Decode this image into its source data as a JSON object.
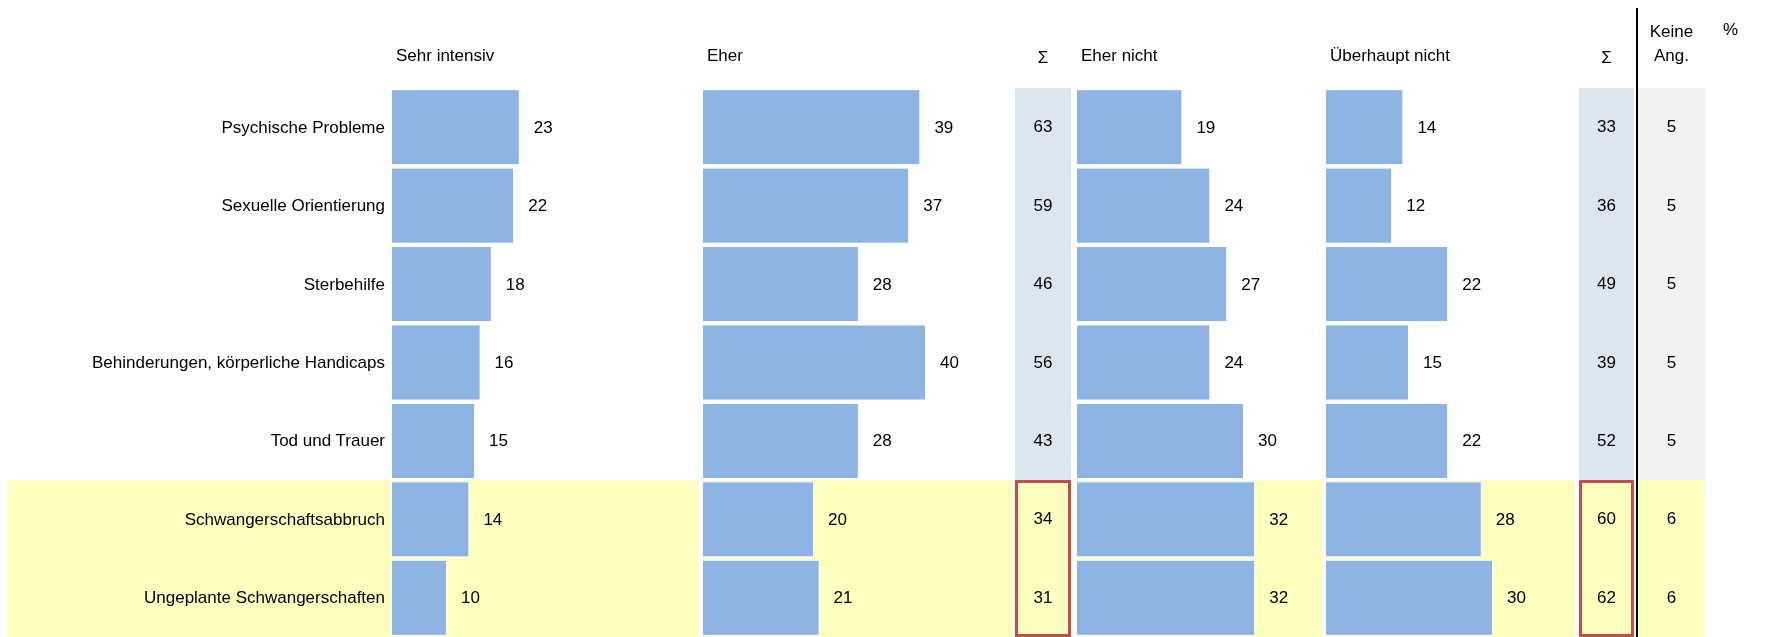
{
  "chart_data": [
    {
      "type": "bar",
      "orientation": "horizontal",
      "title": "Sehr intensiv",
      "categories": [
        "Psychische Probleme",
        "Sexuelle Orientierung",
        "Sterbehilfe",
        "Behinderungen, körperliche Handicaps",
        "Tod und Trauer",
        "Schwangerschaftsabbruch",
        "Ungeplante Schwangerschaften"
      ],
      "values": [
        23,
        22,
        18,
        16,
        15,
        14,
        10
      ],
      "color": "#8eb4e3",
      "data_labels": true,
      "tick_labels": "y",
      "bands": [
        {
          "axis": "y",
          "from": "Schwangerschaftsabbruch",
          "to": "Ungeplante Schwangerschaften",
          "color": "#ffffc0"
        }
      ]
    },
    {
      "type": "bar",
      "orientation": "horizontal",
      "title": "Eher",
      "categories": [
        "Psychische Probleme",
        "Sexuelle Orientierung",
        "Sterbehilfe",
        "Behinderungen, körperliche Handicaps",
        "Tod und Trauer",
        "Schwangerschaftsabbruch",
        "Ungeplante Schwangerschaften"
      ],
      "values": [
        39,
        37,
        28,
        40,
        28,
        20,
        21
      ],
      "color": "#8eb4e3",
      "data_labels": true,
      "tick_labels": false,
      "bands": [
        {
          "axis": "y",
          "from": "Schwangerschaftsabbruch",
          "to": "Ungeplante Schwangerschaften",
          "color": "#ffffc0"
        }
      ]
    },
    {
      "type": "other",
      "title": "Σ",
      "annotations": [
        "63",
        "59",
        "46",
        "56",
        "43",
        "34",
        "31"
      ],
      "color": "#dce6f1"
    },
    {
      "type": "bar",
      "orientation": "horizontal",
      "title": "Eher nicht",
      "categories": [
        "Psychische Probleme",
        "Sexuelle Orientierung",
        "Sterbehilfe",
        "Behinderungen, körperliche Handicaps",
        "Tod und Trauer",
        "Schwangerschaftsabbruch",
        "Ungeplante Schwangerschaften"
      ],
      "values": [
        19,
        24,
        27,
        24,
        30,
        32,
        32
      ],
      "color": "#8eb4e3",
      "data_labels": true,
      "tick_labels": false,
      "bands": [
        {
          "axis": "y",
          "from": "Schwangerschaftsabbruch",
          "to": "Ungeplante Schwangerschaften",
          "color": "#ffffc0"
        }
      ]
    },
    {
      "type": "bar",
      "orientation": "horizontal",
      "title": "Überhaupt nicht",
      "categories": [
        "Psychische Probleme",
        "Sexuelle Orientierung",
        "Sterbehilfe",
        "Behinderungen, körperliche Handicaps",
        "Tod und Trauer",
        "Schwangerschaftsabbruch",
        "Ungeplante Schwangerschaften"
      ],
      "values": [
        14,
        12,
        22,
        15,
        22,
        28,
        30
      ],
      "color": "#8eb4e3",
      "data_labels": true,
      "tick_labels": false,
      "bands": [
        {
          "axis": "y",
          "from": "Schwangerschaftsabbruch",
          "to": "Ungeplante Schwangerschaften",
          "color": "#ffffc0"
        }
      ]
    },
    {
      "type": "other",
      "title": "Σ",
      "annotations": [
        "33",
        "36",
        "49",
        "39",
        "52",
        "60",
        "62"
      ],
      "color": "#dce6f1"
    },
    {
      "type": "other",
      "title": "Keine Ang.",
      "ylabel": "%",
      "annotations": [
        "5",
        "5",
        "5",
        "5",
        "5",
        "6",
        "6"
      ],
      "color": "#f2f2f2"
    }
  ]
}
